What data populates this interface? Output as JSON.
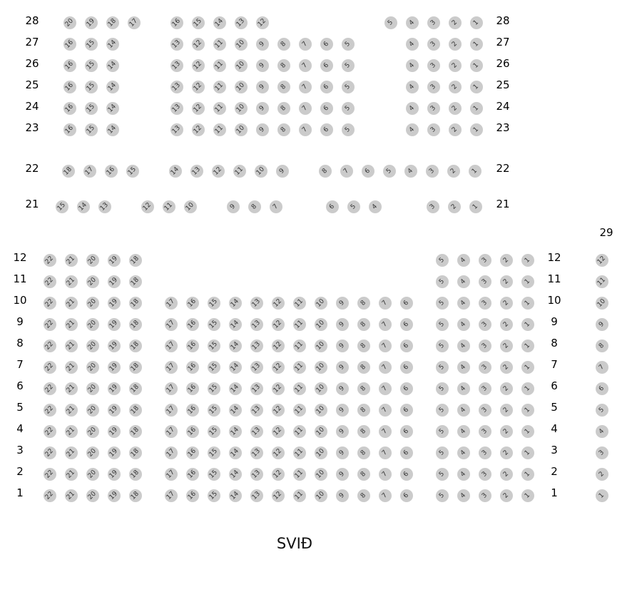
{
  "seat_color": "#cbcbcb",
  "stage_label": "SVIÐ",
  "upper": [
    {
      "row": "28",
      "blocks": [
        [
          20,
          19,
          18,
          17
        ],
        [
          16,
          15,
          14,
          13,
          12
        ],
        [
          5,
          4,
          3,
          2,
          1
        ]
      ]
    },
    {
      "row": "27",
      "blocks": [
        [
          16,
          15,
          14
        ],
        [
          13,
          12,
          11,
          10,
          9,
          8,
          7,
          6,
          5
        ],
        [
          4,
          3,
          2,
          1
        ]
      ]
    },
    {
      "row": "26",
      "blocks": [
        [
          16,
          15,
          14
        ],
        [
          13,
          12,
          11,
          10,
          9,
          8,
          7,
          6,
          5
        ],
        [
          4,
          3,
          2,
          1
        ]
      ]
    },
    {
      "row": "25",
      "blocks": [
        [
          16,
          15,
          14
        ],
        [
          13,
          12,
          11,
          10,
          9,
          8,
          7,
          6,
          5
        ],
        [
          4,
          3,
          2,
          1
        ]
      ]
    },
    {
      "row": "24",
      "blocks": [
        [
          16,
          15,
          14
        ],
        [
          13,
          12,
          11,
          10,
          9,
          8,
          7,
          6,
          5
        ],
        [
          4,
          3,
          2,
          1
        ]
      ]
    },
    {
      "row": "23",
      "blocks": [
        [
          16,
          15,
          14
        ],
        [
          13,
          12,
          11,
          10,
          9,
          8,
          7,
          6,
          5
        ],
        [
          4,
          3,
          2,
          1
        ]
      ]
    },
    {
      "row": "22",
      "blocks": [
        [
          18,
          17,
          16,
          15
        ],
        [
          14,
          13,
          12,
          11,
          10,
          9
        ],
        [
          8,
          7,
          6,
          5,
          4,
          3,
          2,
          1
        ]
      ]
    },
    {
      "row": "21",
      "blocks": [
        [
          15,
          14,
          13
        ],
        [
          12,
          11,
          10
        ],
        [
          9,
          8,
          7
        ],
        [
          6,
          5,
          4
        ],
        [
          3,
          2,
          1
        ]
      ]
    }
  ],
  "lower": [
    {
      "row": "12",
      "blocks": [
        [
          22,
          21,
          20,
          19,
          18
        ],
        [],
        [
          5,
          4,
          3,
          2,
          1
        ]
      ]
    },
    {
      "row": "11",
      "blocks": [
        [
          22,
          21,
          20,
          19,
          18
        ],
        [],
        [
          5,
          4,
          3,
          2,
          1
        ]
      ]
    },
    {
      "row": "10",
      "blocks": [
        [
          22,
          21,
          20,
          19,
          18
        ],
        [
          17,
          16,
          15,
          14,
          13,
          12,
          11,
          10,
          9,
          8,
          7,
          6
        ],
        [
          5,
          4,
          3,
          2,
          1
        ]
      ]
    },
    {
      "row": "9",
      "blocks": [
        [
          22,
          21,
          20,
          19,
          18
        ],
        [
          17,
          16,
          15,
          14,
          13,
          12,
          11,
          10,
          9,
          8,
          7,
          6
        ],
        [
          5,
          4,
          3,
          2,
          1
        ]
      ]
    },
    {
      "row": "8",
      "blocks": [
        [
          22,
          21,
          20,
          19,
          18
        ],
        [
          17,
          16,
          15,
          14,
          13,
          12,
          11,
          10,
          9,
          8,
          7,
          6
        ],
        [
          5,
          4,
          3,
          2,
          1
        ]
      ]
    },
    {
      "row": "7",
      "blocks": [
        [
          22,
          21,
          20,
          19,
          18
        ],
        [
          17,
          16,
          15,
          14,
          13,
          12,
          11,
          10,
          9,
          8,
          7,
          6
        ],
        [
          5,
          4,
          3,
          2,
          1
        ]
      ]
    },
    {
      "row": "6",
      "blocks": [
        [
          22,
          21,
          20,
          19,
          18
        ],
        [
          17,
          16,
          15,
          14,
          13,
          12,
          11,
          10,
          9,
          8,
          7,
          6
        ],
        [
          5,
          4,
          3,
          2,
          1
        ]
      ]
    },
    {
      "row": "5",
      "blocks": [
        [
          22,
          21,
          20,
          19,
          18
        ],
        [
          17,
          16,
          15,
          14,
          13,
          12,
          11,
          10,
          9,
          8,
          7,
          6
        ],
        [
          5,
          4,
          3,
          2,
          1
        ]
      ]
    },
    {
      "row": "4",
      "blocks": [
        [
          22,
          21,
          20,
          19,
          18
        ],
        [
          17,
          16,
          15,
          14,
          13,
          12,
          11,
          10,
          9,
          8,
          7,
          6
        ],
        [
          5,
          4,
          3,
          2,
          1
        ]
      ]
    },
    {
      "row": "3",
      "blocks": [
        [
          22,
          21,
          20,
          19,
          18
        ],
        [
          17,
          16,
          15,
          14,
          13,
          12,
          11,
          10,
          9,
          8,
          7,
          6
        ],
        [
          5,
          4,
          3,
          2,
          1
        ]
      ]
    },
    {
      "row": "2",
      "blocks": [
        [
          22,
          21,
          20,
          19,
          18
        ],
        [
          17,
          16,
          15,
          14,
          13,
          12,
          11,
          10,
          9,
          8,
          7,
          6
        ],
        [
          5,
          4,
          3,
          2,
          1
        ]
      ]
    },
    {
      "row": "1",
      "blocks": [
        [
          22,
          21,
          20,
          19,
          18
        ],
        [
          17,
          16,
          15,
          14,
          13,
          12,
          11,
          10,
          9,
          8,
          7,
          6
        ],
        [
          5,
          4,
          3,
          2,
          1
        ]
      ]
    }
  ],
  "side_section": {
    "label": "29",
    "seats": [
      12,
      11,
      10,
      9,
      8,
      7,
      6,
      5,
      4,
      3,
      2,
      1
    ]
  }
}
